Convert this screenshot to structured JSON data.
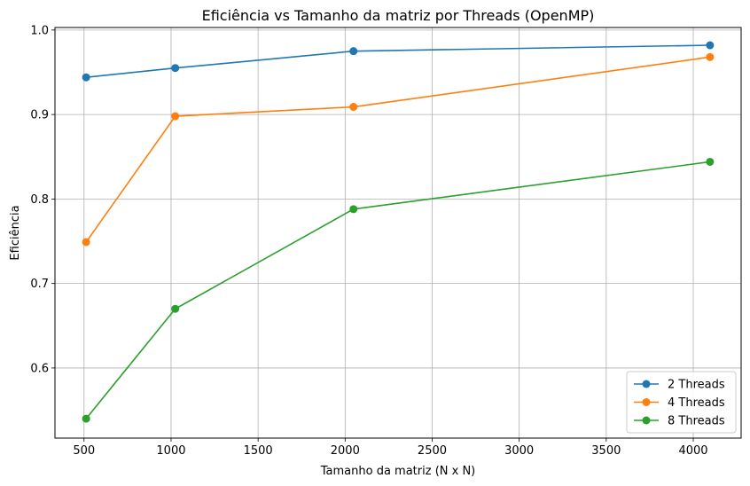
{
  "chart_data": {
    "type": "line",
    "title": "Eficiência vs Tamanho da matriz por Threads (OpenMP)",
    "xlabel": "Tamanho da matriz (N x N)",
    "ylabel": "Eficiência",
    "x": [
      512,
      1024,
      2048,
      4096
    ],
    "xlim": [
      333,
      4275
    ],
    "ylim": [
      0.517,
      1.003
    ],
    "xticks": [
      500,
      1000,
      1500,
      2000,
      2500,
      3000,
      3500,
      4000
    ],
    "xtick_labels": [
      "500",
      "1000",
      "1500",
      "2000",
      "2500",
      "3000",
      "3500",
      "4000"
    ],
    "yticks": [
      0.6,
      0.7,
      0.8,
      0.9,
      1.0
    ],
    "ytick_labels": [
      "0.6",
      "0.7",
      "0.8",
      "0.9",
      "1.0"
    ],
    "grid": true,
    "legend_position": "bottom-right",
    "marker": "circle",
    "series": [
      {
        "name": "2 Threads",
        "color": "#1f77b4",
        "values": [
          0.944,
          0.955,
          0.975,
          0.982
        ]
      },
      {
        "name": "4 Threads",
        "color": "#ff7f0e",
        "values": [
          0.749,
          0.898,
          0.909,
          0.968
        ]
      },
      {
        "name": "8 Threads",
        "color": "#2ca02c",
        "values": [
          0.54,
          0.67,
          0.788,
          0.844
        ]
      }
    ]
  }
}
